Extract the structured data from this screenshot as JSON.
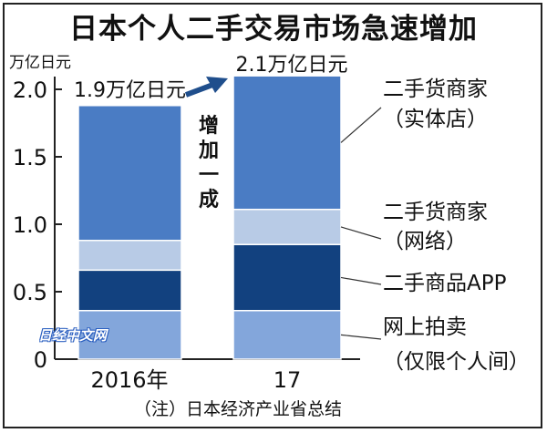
{
  "title": "日本个人二手交易市场急速增加",
  "note": "（注）日本经济产业省总结",
  "watermark": "日经中文网",
  "colors": {
    "retail": "#4a7cc4",
    "online": "#b8cbe6",
    "app": "#12417f",
    "auction": "#83a6db",
    "axis": "#222222",
    "arrow": "#1f4e8c"
  },
  "chart_data": {
    "type": "bar",
    "stacked": true,
    "title": "日本个人二手交易市场急速增加",
    "ylabel": "万亿日元",
    "ylim": [
      0,
      2.0
    ],
    "yticks": [
      "0",
      "0.5",
      "1.0",
      "1.5",
      "2.0"
    ],
    "categories": [
      "2016年",
      "17"
    ],
    "totals": [
      "1.9万亿日元",
      "2.1万亿日元"
    ],
    "annotation": "增加一成",
    "series": [
      {
        "name": "网上拍卖（仅限个人间）",
        "label_lines": [
          "网上拍卖",
          "（仅限个人间）"
        ],
        "values": [
          0.36,
          0.36
        ],
        "color": "#83a6db"
      },
      {
        "name": "二手商品APP",
        "label_lines": [
          "二手商品APP"
        ],
        "values": [
          0.3,
          0.49
        ],
        "color": "#12417f"
      },
      {
        "name": "二手货商家（网络）",
        "label_lines": [
          "二手货商家",
          "（网络）"
        ],
        "values": [
          0.22,
          0.26
        ],
        "color": "#b8cbe6"
      },
      {
        "name": "二手货商家（实体店）",
        "label_lines": [
          "二手货商家",
          "（实体店）"
        ],
        "values": [
          1.0,
          0.99
        ],
        "color": "#4a7cc4"
      }
    ]
  }
}
